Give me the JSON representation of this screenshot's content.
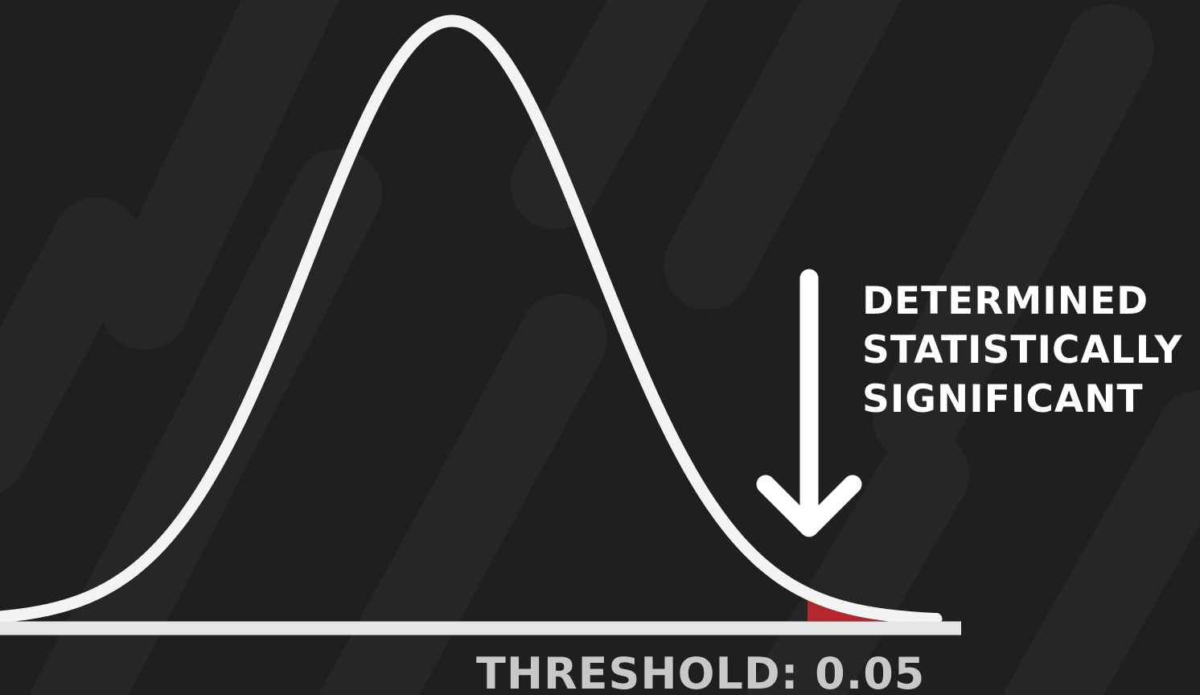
{
  "annotation": {
    "lines": [
      "DETERMINED",
      "STATISTICALLY",
      "SIGNIFICANT"
    ]
  },
  "threshold_label": "THRESHOLD: 0.05",
  "colors": {
    "background": "#1f1f1f",
    "stripe": "#262626",
    "curve": "#f4f4f4",
    "axis": "#e6e6e6",
    "rejection_region": "#b3282d",
    "annotation_text": "#ffffff",
    "threshold_text": "#c8c8c8"
  },
  "icons": {
    "arrow": "down-arrow-icon"
  }
}
